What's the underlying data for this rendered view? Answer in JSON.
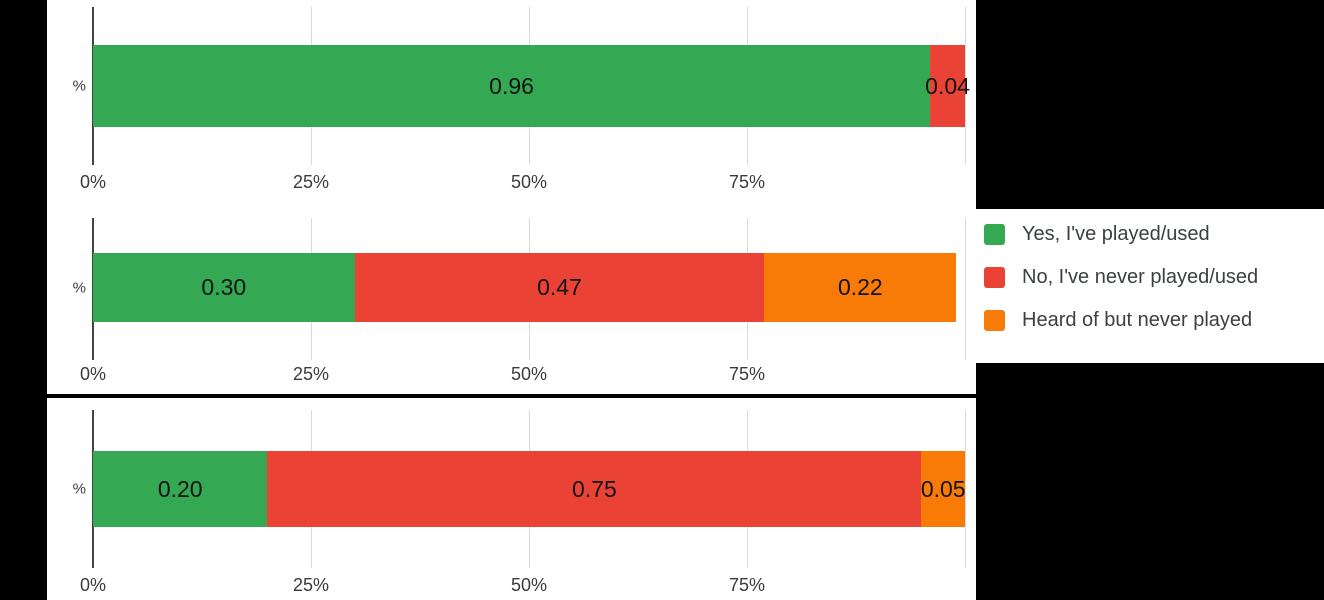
{
  "colors": {
    "green": "#34a853",
    "red": "#ea4335",
    "orange": "#f87b07",
    "panel": "#000000",
    "gridline": "#d9d9d9",
    "axis": "#424242",
    "tick_text": "#3a3a3a",
    "value_text": "#141414",
    "legend_text": "#3c4043"
  },
  "legend": {
    "items": [
      {
        "label": "Yes, I've played/used",
        "color": "#34a853"
      },
      {
        "label": "No, I've never played/used",
        "color": "#ea4335"
      },
      {
        "label": "Heard of but never played",
        "color": "#f87b07"
      }
    ]
  },
  "chart_data": [
    {
      "type": "bar",
      "stacked": true,
      "orientation": "horizontal",
      "categories": [
        "%"
      ],
      "ylabel": "%",
      "xlim": [
        0,
        1
      ],
      "x_tick_labels": [
        "0%",
        "25%",
        "50%",
        "75%"
      ],
      "grid": true,
      "legend_position": "right",
      "series": [
        {
          "name": "Yes, I've played/used",
          "values": [
            0.96
          ],
          "label": "0.96"
        },
        {
          "name": "No, I've never played/used",
          "values": [
            0.04
          ],
          "label": "0.04"
        },
        {
          "name": "Heard of but never played",
          "values": [
            0
          ],
          "label": null
        }
      ]
    },
    {
      "type": "bar",
      "stacked": true,
      "orientation": "horizontal",
      "categories": [
        "%"
      ],
      "ylabel": "%",
      "xlim": [
        0,
        1
      ],
      "x_tick_labels": [
        "0%",
        "25%",
        "50%",
        "75%"
      ],
      "grid": true,
      "legend_position": "right",
      "series": [
        {
          "name": "Yes, I've played/used",
          "values": [
            0.3
          ],
          "label": "0.30"
        },
        {
          "name": "No, I've never played/used",
          "values": [
            0.47
          ],
          "label": "0.47"
        },
        {
          "name": "Heard of but never played",
          "values": [
            0.22
          ],
          "label": "0.22"
        }
      ]
    },
    {
      "type": "bar",
      "stacked": true,
      "orientation": "horizontal",
      "categories": [
        "%"
      ],
      "ylabel": "%",
      "xlim": [
        0,
        1
      ],
      "x_tick_labels": [
        "0%",
        "25%",
        "50%",
        "75%"
      ],
      "grid": true,
      "legend_position": "right",
      "series": [
        {
          "name": "Yes, I've played/used",
          "values": [
            0.2
          ],
          "label": "0.20"
        },
        {
          "name": "No, I've never played/used",
          "values": [
            0.75
          ],
          "label": "0.75"
        },
        {
          "name": "Heard of but never played",
          "values": [
            0.05
          ],
          "label": "0.05"
        }
      ]
    }
  ]
}
